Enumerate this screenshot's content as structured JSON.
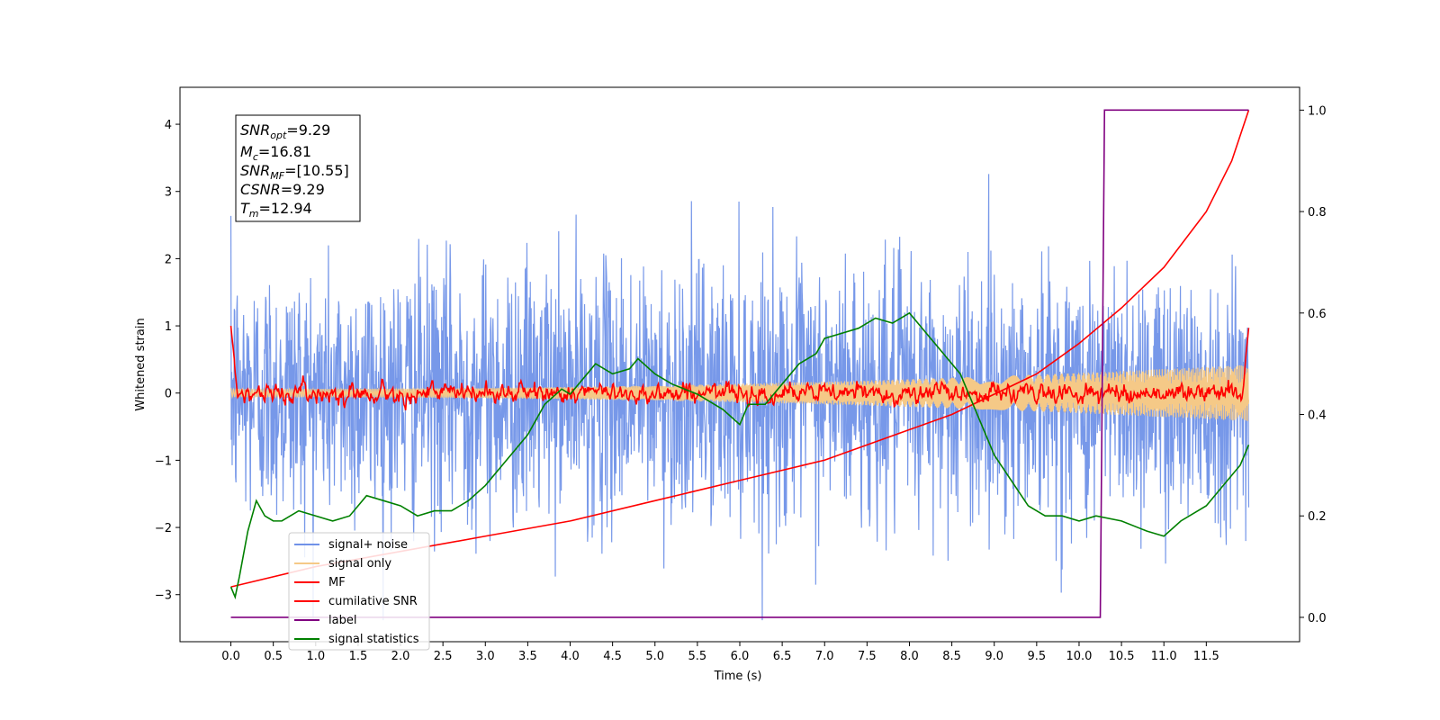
{
  "chart_data": {
    "type": "line",
    "title": "",
    "xlabel": "Time (s)",
    "ylabel": "Whitened strain",
    "ylabel_right": "",
    "xlim": [
      -0.6,
      12.6
    ],
    "ylim": [
      -3.7,
      4.55
    ],
    "ylim_right": [
      -0.048,
      1.045
    ],
    "x_ticks": [
      "0.0",
      "0.5",
      "1.0",
      "1.5",
      "2.0",
      "2.5",
      "3.0",
      "3.5",
      "4.0",
      "4.5",
      "5.0",
      "5.5",
      "6.0",
      "6.5",
      "7.0",
      "7.5",
      "8.0",
      "8.5",
      "9.0",
      "9.5",
      "10.0",
      "10.5",
      "11.0",
      "11.5"
    ],
    "x_tick_values": [
      0.0,
      0.5,
      1.0,
      1.5,
      2.0,
      2.5,
      3.0,
      3.5,
      4.0,
      4.5,
      5.0,
      5.5,
      6.0,
      6.5,
      7.0,
      7.5,
      8.0,
      8.5,
      9.0,
      9.5,
      10.0,
      10.5,
      11.0,
      11.5
    ],
    "y_ticks": [
      "−3",
      "−2",
      "−1",
      "0",
      "1",
      "2",
      "3",
      "4"
    ],
    "y_tick_values": [
      -3,
      -2,
      -1,
      0,
      1,
      2,
      3,
      4
    ],
    "y_right_ticks": [
      "0.0",
      "0.2",
      "0.4",
      "0.6",
      "0.8",
      "1.0"
    ],
    "y_right_tick_values": [
      0.0,
      0.2,
      0.4,
      0.6,
      0.8,
      1.0
    ],
    "grid": false,
    "legend_position": "lower-left",
    "annotation": {
      "lines": [
        {
          "sym": "SNR",
          "sub": "opt",
          "val": "=9.29"
        },
        {
          "sym": "M",
          "sub": "c",
          "val": "=16.81"
        },
        {
          "sym": "SNR",
          "sub": "MF",
          "val": "=[10.55]"
        },
        {
          "sym": "CSNR",
          "sub": "",
          "val": "=9.29"
        },
        {
          "sym": "T",
          "sub": "m",
          "val": "=12.94"
        }
      ]
    },
    "series": [
      {
        "name": "signal+ noise",
        "color": "#7092e8",
        "axis": "left",
        "noise_amplitude": 0.95,
        "peak_max": 3.43,
        "peak_min": -3.38,
        "x_range": [
          0.0,
          12.0
        ]
      },
      {
        "name": "signal only",
        "color": "#f5c987",
        "axis": "left",
        "envelope_start": 0.06,
        "envelope_end": 0.42,
        "x_range": [
          0.0,
          12.0
        ]
      },
      {
        "name": "MF",
        "color": "#ff0000",
        "axis": "left",
        "start_value": 1.0,
        "end_value": 0.97,
        "baseline": 0.0,
        "x_range": [
          0.0,
          12.0
        ]
      },
      {
        "name": "cumilative SNR",
        "color": "#ff0000",
        "axis": "right",
        "x": [
          0.0,
          1.0,
          2.0,
          3.0,
          4.0,
          5.0,
          6.0,
          7.0,
          8.0,
          8.5,
          9.0,
          9.5,
          10.0,
          10.5,
          11.0,
          11.5,
          11.8,
          12.0
        ],
        "y": [
          0.06,
          0.1,
          0.13,
          0.16,
          0.19,
          0.23,
          0.27,
          0.31,
          0.37,
          0.4,
          0.44,
          0.48,
          0.54,
          0.61,
          0.69,
          0.8,
          0.9,
          1.0
        ]
      },
      {
        "name": "label",
        "color": "#800080",
        "axis": "right",
        "x": [
          0.0,
          10.25,
          10.3,
          12.0
        ],
        "y": [
          0.0,
          0.0,
          1.0,
          1.0
        ]
      },
      {
        "name": "signal statistics",
        "color": "#008000",
        "axis": "right",
        "x": [
          0.0,
          0.05,
          0.1,
          0.2,
          0.3,
          0.4,
          0.5,
          0.6,
          0.8,
          1.0,
          1.2,
          1.4,
          1.5,
          1.6,
          1.8,
          2.0,
          2.2,
          2.4,
          2.6,
          2.8,
          3.0,
          3.2,
          3.3,
          3.5,
          3.7,
          3.9,
          4.0,
          4.2,
          4.3,
          4.5,
          4.7,
          4.8,
          5.0,
          5.2,
          5.5,
          5.8,
          6.0,
          6.1,
          6.3,
          6.5,
          6.7,
          6.9,
          7.0,
          7.2,
          7.4,
          7.6,
          7.8,
          8.0,
          8.2,
          8.4,
          8.6,
          8.8,
          9.0,
          9.2,
          9.4,
          9.6,
          9.8,
          10.0,
          10.2,
          10.5,
          10.8,
          11.0,
          11.2,
          11.5,
          11.7,
          11.9,
          12.0
        ],
        "y": [
          0.06,
          0.04,
          0.08,
          0.17,
          0.23,
          0.2,
          0.19,
          0.19,
          0.21,
          0.2,
          0.19,
          0.2,
          0.22,
          0.24,
          0.23,
          0.22,
          0.2,
          0.21,
          0.21,
          0.23,
          0.26,
          0.3,
          0.32,
          0.36,
          0.42,
          0.45,
          0.44,
          0.48,
          0.5,
          0.48,
          0.49,
          0.51,
          0.48,
          0.46,
          0.44,
          0.41,
          0.38,
          0.42,
          0.42,
          0.46,
          0.5,
          0.52,
          0.55,
          0.56,
          0.57,
          0.59,
          0.58,
          0.6,
          0.56,
          0.52,
          0.48,
          0.4,
          0.32,
          0.27,
          0.22,
          0.2,
          0.2,
          0.19,
          0.2,
          0.19,
          0.17,
          0.16,
          0.19,
          0.22,
          0.26,
          0.3,
          0.34
        ]
      }
    ]
  }
}
